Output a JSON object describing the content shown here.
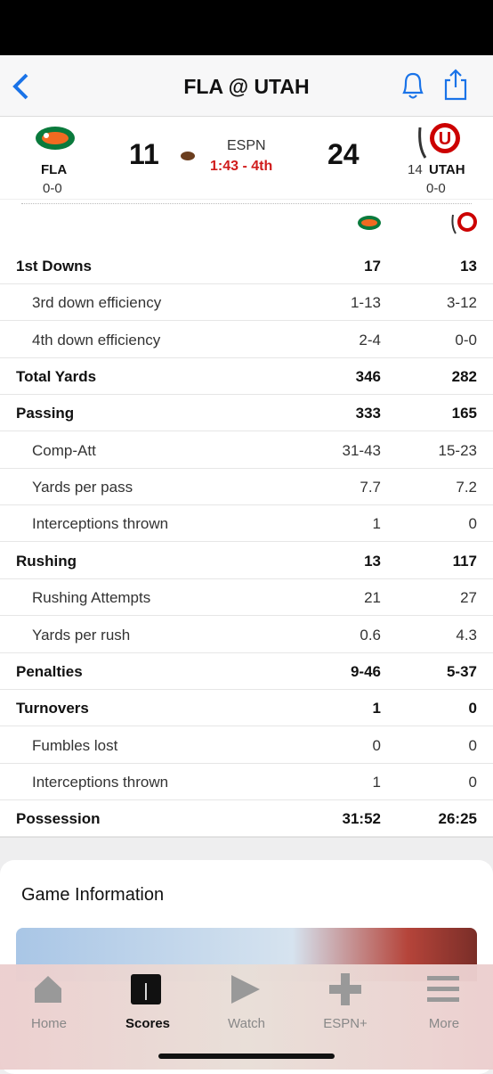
{
  "header": {
    "title": "FLA @ UTAH"
  },
  "scoreboard": {
    "away": {
      "abbr": "FLA",
      "record": "0-0",
      "score": 11
    },
    "network": "ESPN",
    "clock": "1:43 - 4th",
    "home": {
      "rank": 14,
      "abbr": "UTAH",
      "record": "0-0",
      "score": 24
    }
  },
  "stats": {
    "rows": [
      {
        "label": "1st Downs",
        "away": "17",
        "home": "13"
      },
      {
        "label": "3rd down efficiency",
        "away": "1-13",
        "home": "3-12"
      },
      {
        "label": "4th down efficiency",
        "away": "2-4",
        "home": "0-0"
      },
      {
        "label": "Total Yards",
        "away": "346",
        "home": "282"
      },
      {
        "label": "Passing",
        "away": "333",
        "home": "165"
      },
      {
        "label": "Comp-Att",
        "away": "31-43",
        "home": "15-23"
      },
      {
        "label": "Yards per pass",
        "away": "7.7",
        "home": "7.2"
      },
      {
        "label": "Interceptions thrown",
        "away": "1",
        "home": "0"
      },
      {
        "label": "Rushing",
        "away": "13",
        "home": "117"
      },
      {
        "label": "Rushing Attempts",
        "away": "21",
        "home": "27"
      },
      {
        "label": "Yards per rush",
        "away": "0.6",
        "home": "4.3"
      },
      {
        "label": "Penalties",
        "away": "9-46",
        "home": "5-37"
      },
      {
        "label": "Turnovers",
        "away": "1",
        "home": "0"
      },
      {
        "label": "Fumbles lost",
        "away": "0",
        "home": "0"
      },
      {
        "label": "Interceptions thrown",
        "away": "1",
        "home": "0"
      },
      {
        "label": "Possession",
        "away": "31:52",
        "home": "26:25"
      }
    ]
  },
  "game_info": {
    "title": "Game Information"
  },
  "tabs": [
    {
      "label": "Home"
    },
    {
      "label": "Scores"
    },
    {
      "label": "Watch"
    },
    {
      "label": "ESPN+"
    },
    {
      "label": "More"
    }
  ]
}
